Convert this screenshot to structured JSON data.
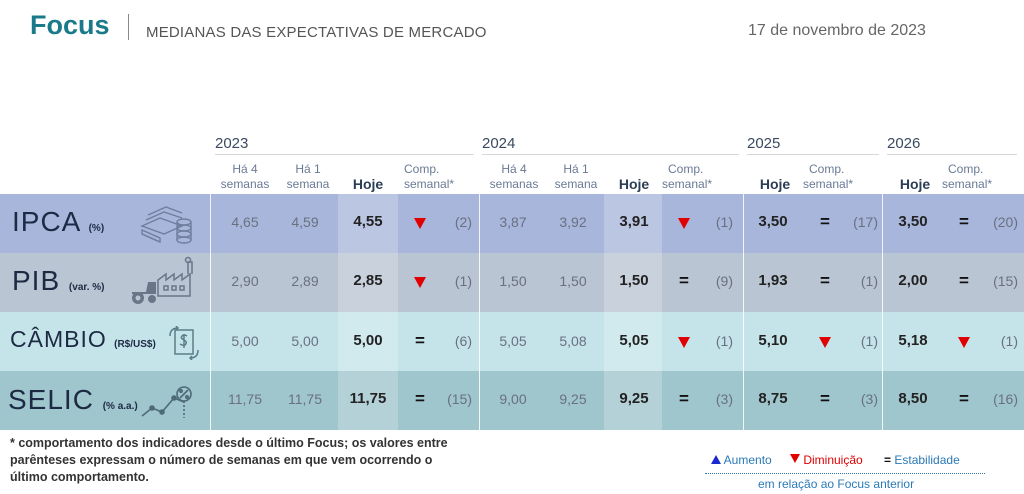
{
  "header": {
    "brand": "Focus",
    "subtitle": "MEDIANAS DAS EXPECTATIVAS DE MERCADO",
    "date": "17 de novembro de 2023"
  },
  "years": [
    "2023",
    "2024",
    "2025",
    "2026"
  ],
  "col_headers": {
    "ha4": [
      "Há 4",
      "semanas"
    ],
    "ha1": [
      "Há 1",
      "semana"
    ],
    "hoje": "Hoje",
    "comp": [
      "Comp.",
      "semanal*"
    ]
  },
  "rows": [
    {
      "name": "IPCA",
      "unit": "(%)",
      "icon": "money-stack-icon",
      "y2023": {
        "ha4": "4,65",
        "ha1": "4,59",
        "hoje": "4,55",
        "trend": "down",
        "weeks": "(2)"
      },
      "y2024": {
        "ha4": "3,87",
        "ha1": "3,92",
        "hoje": "3,91",
        "trend": "down",
        "weeks": "(1)"
      },
      "y2025": {
        "hoje": "3,50",
        "trend": "equal",
        "weeks": "(17)"
      },
      "y2026": {
        "hoje": "3,50",
        "trend": "equal",
        "weeks": "(20)"
      }
    },
    {
      "name": "PIB",
      "unit": "(var. %)",
      "icon": "factory-tractor-icon",
      "y2023": {
        "ha4": "2,90",
        "ha1": "2,89",
        "hoje": "2,85",
        "trend": "down",
        "weeks": "(1)"
      },
      "y2024": {
        "ha4": "1,50",
        "ha1": "1,50",
        "hoje": "1,50",
        "trend": "equal",
        "weeks": "(9)"
      },
      "y2025": {
        "hoje": "1,93",
        "trend": "equal",
        "weeks": "(1)"
      },
      "y2026": {
        "hoje": "2,00",
        "trend": "equal",
        "weeks": "(15)"
      }
    },
    {
      "name": "CÂMBIO",
      "unit": "(R$/US$)",
      "icon": "currency-exchange-icon",
      "y2023": {
        "ha4": "5,00",
        "ha1": "5,00",
        "hoje": "5,00",
        "trend": "equal",
        "weeks": "(6)"
      },
      "y2024": {
        "ha4": "5,05",
        "ha1": "5,08",
        "hoje": "5,05",
        "trend": "down",
        "weeks": "(1)"
      },
      "y2025": {
        "hoje": "5,10",
        "trend": "down",
        "weeks": "(1)"
      },
      "y2026": {
        "hoje": "5,18",
        "trend": "down",
        "weeks": "(1)"
      }
    },
    {
      "name": "SELIC",
      "unit": "(% a.a.)",
      "icon": "percent-chart-icon",
      "y2023": {
        "ha4": "11,75",
        "ha1": "11,75",
        "hoje": "11,75",
        "trend": "equal",
        "weeks": "(15)"
      },
      "y2024": {
        "ha4": "9,00",
        "ha1": "9,25",
        "hoje": "9,25",
        "trend": "equal",
        "weeks": "(3)"
      },
      "y2025": {
        "hoje": "8,75",
        "trend": "equal",
        "weeks": "(3)"
      },
      "y2026": {
        "hoje": "8,50",
        "trend": "equal",
        "weeks": "(16)"
      }
    }
  ],
  "footnote": "* comportamento dos indicadores desde o último Focus; os valores entre parênteses expressam o número de semanas em que vem ocorrendo o último comportamento.",
  "legend": {
    "up": "Aumento",
    "down": "Diminuição",
    "equal_symbol": "=",
    "equal": "Estabilidade",
    "note": "em relação ao Focus anterior"
  },
  "colors": {
    "brand": "#1a7a8a",
    "down": "#e00000",
    "up": "#1a2ad0",
    "legend_text": "#2a7ab8"
  }
}
